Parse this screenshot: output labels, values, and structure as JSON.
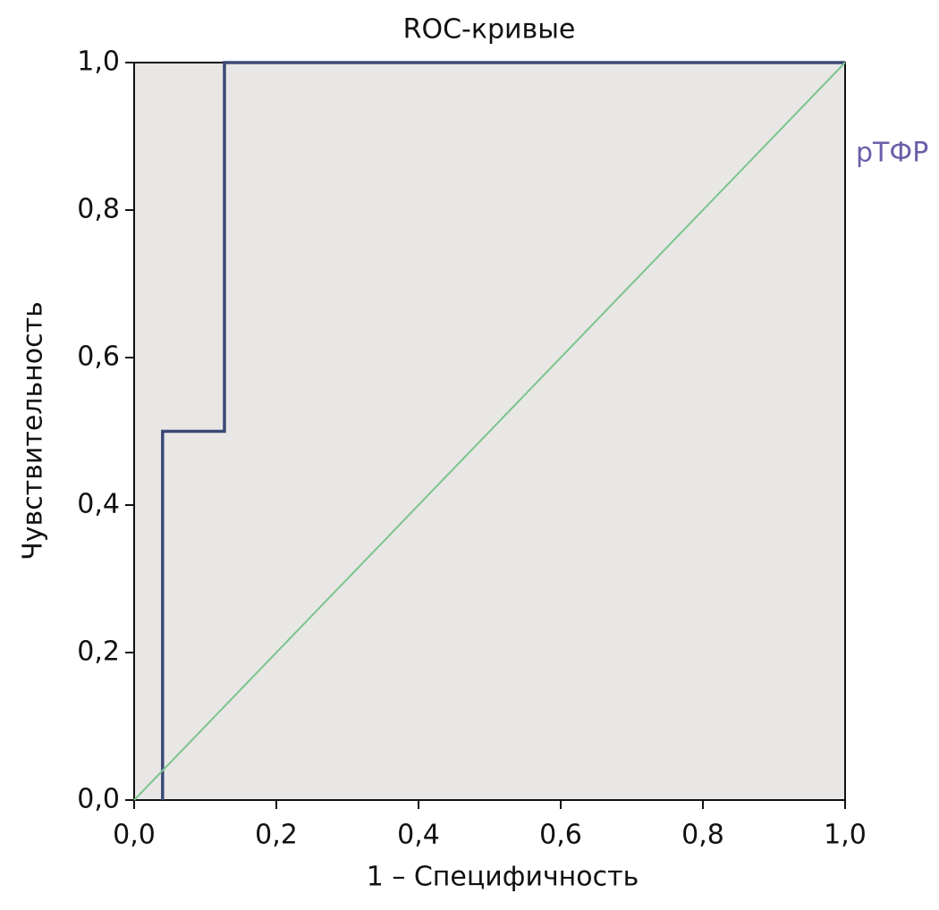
{
  "chart_data": {
    "type": "line",
    "title": "ROC-кривые",
    "x_label": "1 – Специфичность",
    "y_label": "Чувствительность",
    "xlim": [
      0,
      1
    ],
    "ylim": [
      0,
      1
    ],
    "xticks": [
      {
        "value": 0,
        "label": "0,0"
      },
      {
        "value": 0.2,
        "label": "0,2"
      },
      {
        "value": 0.4,
        "label": "0,4"
      },
      {
        "value": 0.6,
        "label": "0,6"
      },
      {
        "value": 0.8,
        "label": "0,8"
      },
      {
        "value": 1,
        "label": "1,0"
      }
    ],
    "yticks": [
      {
        "value": 0,
        "label": "0,0"
      },
      {
        "value": 0.2,
        "label": "0,2"
      },
      {
        "value": 0.4,
        "label": "0,4"
      },
      {
        "value": 0.6,
        "label": "0,6"
      },
      {
        "value": 0.8,
        "label": "0,8"
      },
      {
        "value": 1,
        "label": "1,0"
      }
    ],
    "series": [
      {
        "name": "рТФР",
        "color": "#3d4877",
        "x": [
          0.04,
          0.04,
          0.127,
          0.127,
          1
        ],
        "values": [
          0,
          0.5,
          0.5,
          1,
          1
        ]
      },
      {
        "color": "#7cc48e",
        "x": [
          0,
          1
        ],
        "values": [
          0,
          1
        ]
      }
    ]
  }
}
